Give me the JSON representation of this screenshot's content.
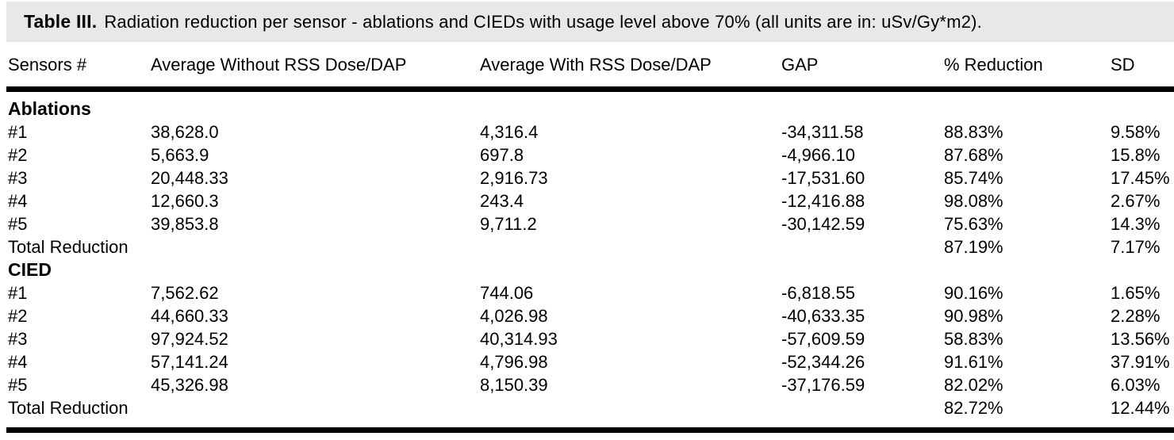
{
  "table": {
    "label": "Table III.",
    "caption": "Radiation reduction per sensor - ablations and CIEDs with usage level above 70% (all units are in: uSv/Gy*m2).",
    "columns": [
      "Sensors #",
      "Average Without RSS Dose/DAP",
      "Average With RSS Dose/DAP",
      "GAP",
      "% Reduction",
      "SD"
    ],
    "sections": [
      {
        "name": "Ablations",
        "rows": [
          [
            "#1",
            "38,628.0",
            "4,316.4",
            "-34,311.58",
            "88.83%",
            "9.58%"
          ],
          [
            "#2",
            "5,663.9",
            "697.8",
            "-4,966.10",
            "87.68%",
            "15.8%"
          ],
          [
            "#3",
            "20,448.33",
            "2,916.73",
            "-17,531.60",
            "85.74%",
            "17.45%"
          ],
          [
            "#4",
            "12,660.3",
            "243.4",
            "-12,416.88",
            "98.08%",
            "2.67%"
          ],
          [
            "#5",
            "39,853.8",
            "9,711.2",
            "-30,142.59",
            "75.63%",
            "14.3%"
          ],
          [
            "Total Reduction",
            "",
            "",
            "",
            "87.19%",
            "7.17%"
          ]
        ]
      },
      {
        "name": "CIED",
        "rows": [
          [
            "#1",
            "7,562.62",
            "744.06",
            "-6,818.55",
            "90.16%",
            "1.65%"
          ],
          [
            "#2",
            "44,660.33",
            "4,026.98",
            "-40,633.35",
            "90.98%",
            "2.28%"
          ],
          [
            "#3",
            "97,924.52",
            "40,314.93",
            "-57,609.59",
            "58.83%",
            "13.56%"
          ],
          [
            "#4",
            "57,141.24",
            "4,796.98",
            "-52,344.26",
            "91.61%",
            "37.91%"
          ],
          [
            "#5",
            "45,326.98",
            "8,150.39",
            "-37,176.59",
            "82.02%",
            "6.03%"
          ],
          [
            "Total Reduction",
            "",
            "",
            "",
            "82.72%",
            "12.44%"
          ]
        ]
      }
    ]
  },
  "colors": {
    "caption_background": "#e8e8e8",
    "rule": "#000000",
    "text": "#000000"
  }
}
